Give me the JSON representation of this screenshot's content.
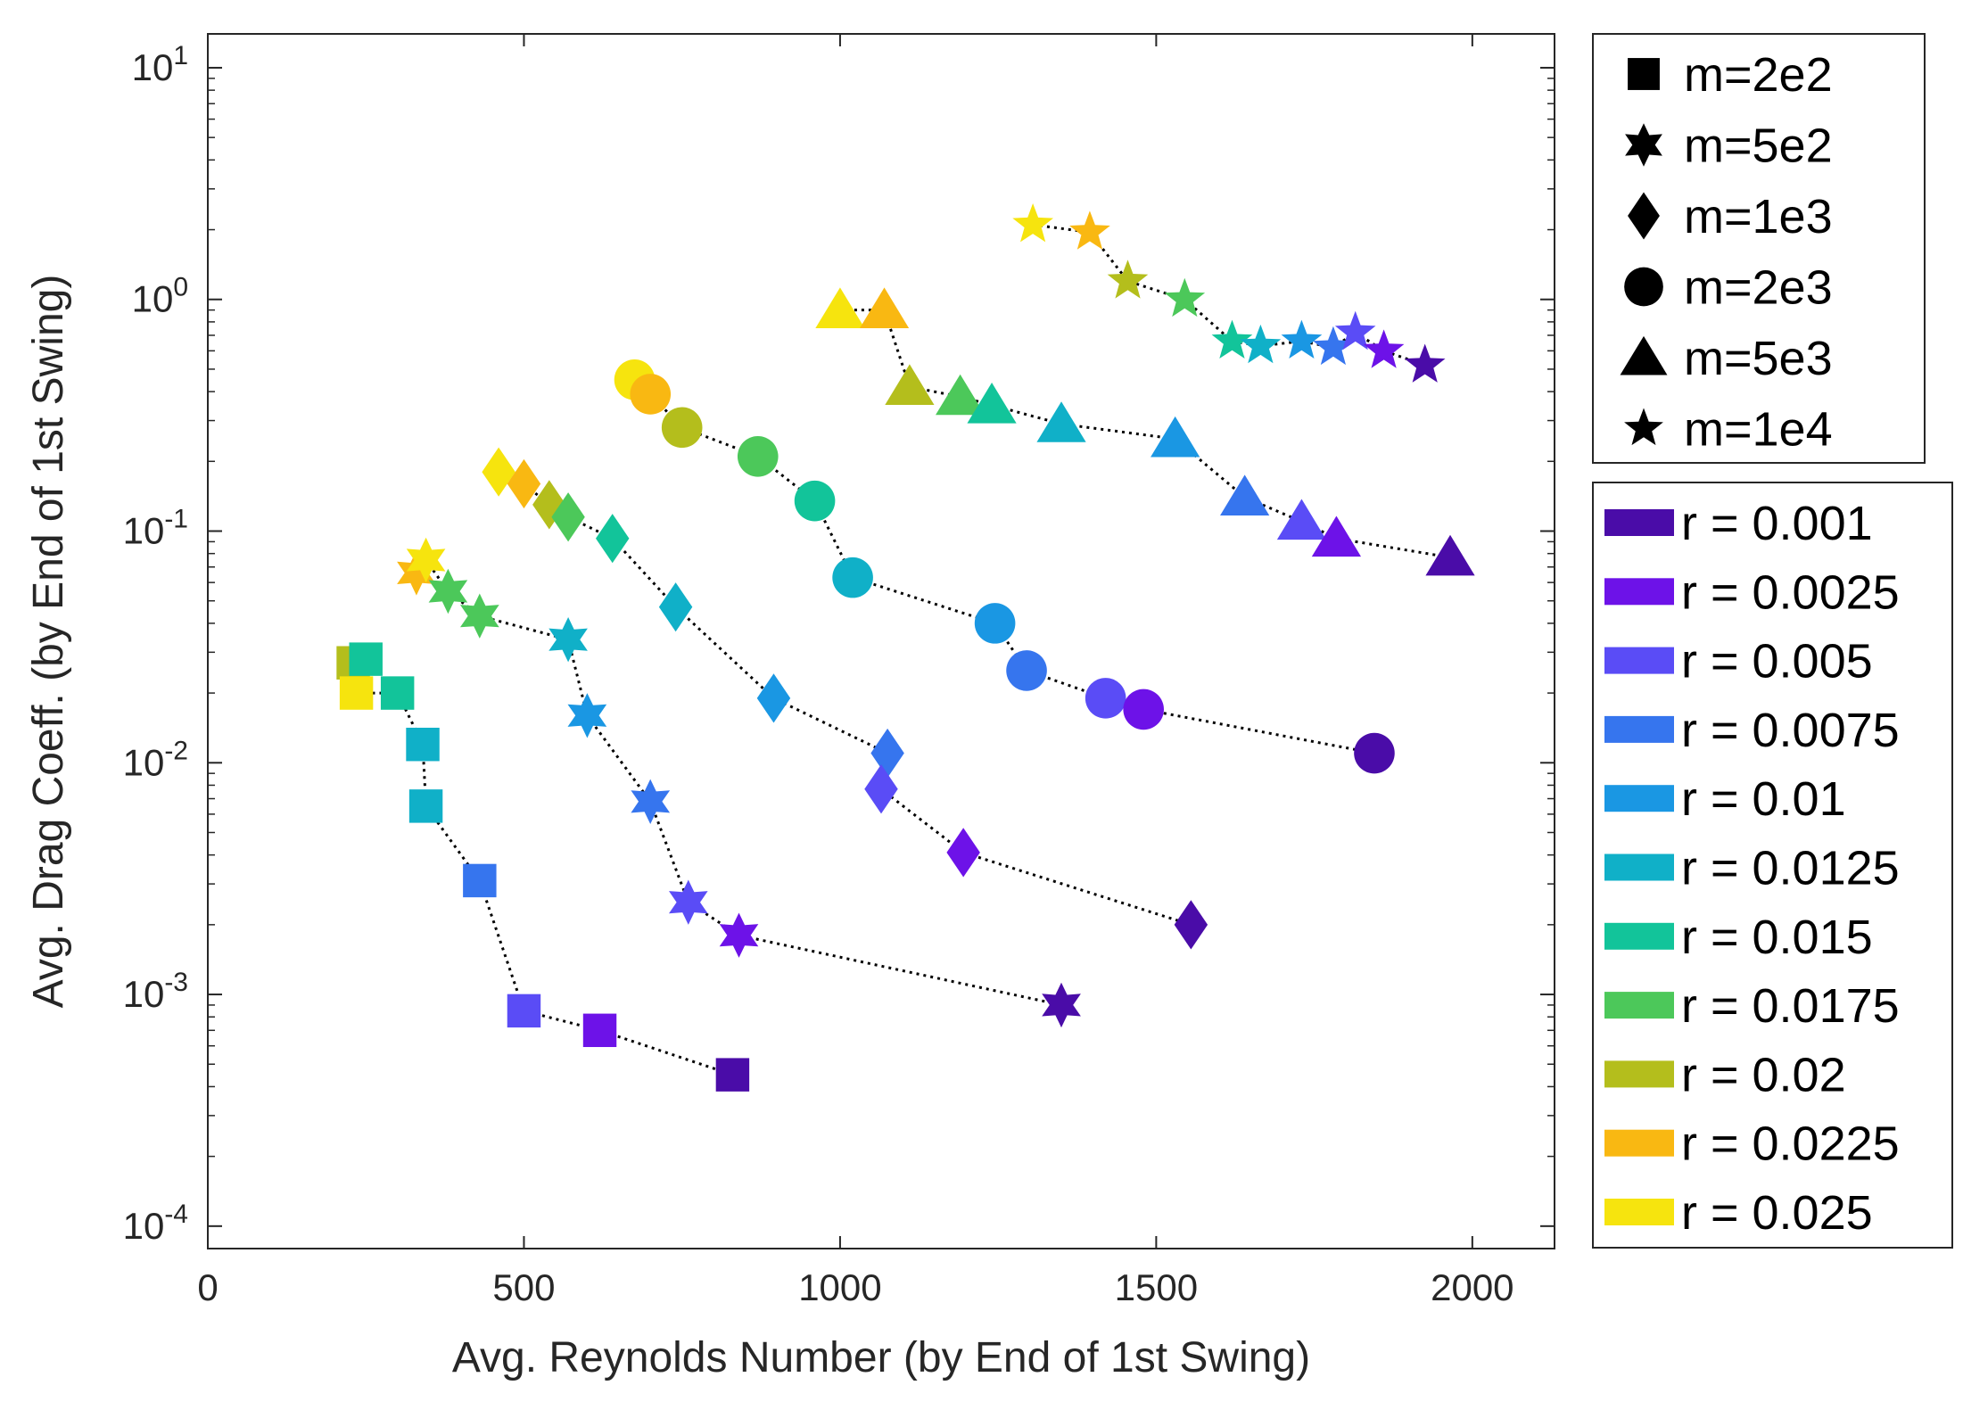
{
  "chart_data": {
    "type": "scatter",
    "xlabel": "Avg. Reynolds Number (by End of 1st Swing)",
    "ylabel": "Avg. Drag Coeff. (by End of 1st Swing)",
    "xlim": [
      0,
      2130
    ],
    "ylim": [
      8e-05,
      14
    ],
    "yscale": "log",
    "grid": false,
    "legend_placement": "outside-right",
    "x_ticks": [
      {
        "value": 0,
        "label": "0"
      },
      {
        "value": 500,
        "label": "500"
      },
      {
        "value": 1000,
        "label": "1000"
      },
      {
        "value": 1500,
        "label": "1500"
      },
      {
        "value": 2000,
        "label": "2000"
      }
    ],
    "y_ticks": [
      {
        "value": 0.0001,
        "base": "10",
        "exp": "-4"
      },
      {
        "value": 0.001,
        "base": "10",
        "exp": "-3"
      },
      {
        "value": 0.01,
        "base": "10",
        "exp": "-2"
      },
      {
        "value": 0.1,
        "base": "10",
        "exp": "-1"
      },
      {
        "value": 1,
        "base": "10",
        "exp": "0"
      },
      {
        "value": 10,
        "base": "10",
        "exp": "1"
      }
    ],
    "marker_legend": [
      {
        "marker": "square",
        "label": "m=2e2"
      },
      {
        "marker": "star6",
        "label": "m=5e2"
      },
      {
        "marker": "diamond",
        "label": "m=1e3"
      },
      {
        "marker": "circle",
        "label": "m=2e3"
      },
      {
        "marker": "triangle",
        "label": "m=5e3"
      },
      {
        "marker": "star5",
        "label": "m=1e4"
      }
    ],
    "r_legend": [
      {
        "label": "r = 0.001",
        "color": "#4a0ca8"
      },
      {
        "label": "r = 0.0025",
        "color": "#6d12e8"
      },
      {
        "label": "r = 0.005",
        "color": "#5a4cf6"
      },
      {
        "label": "r = 0.0075",
        "color": "#3675ee"
      },
      {
        "label": "r = 0.01",
        "color": "#1a97e3"
      },
      {
        "label": "r = 0.0125",
        "color": "#10b0c8"
      },
      {
        "label": "r = 0.015",
        "color": "#12c49a"
      },
      {
        "label": "r = 0.0175",
        "color": "#4cc85a"
      },
      {
        "label": "r = 0.02",
        "color": "#b4be1c"
      },
      {
        "label": "r = 0.0225",
        "color": "#f9b812"
      },
      {
        "label": "r = 0.025",
        "color": "#f6e40e"
      }
    ],
    "series": [
      {
        "marker": "square",
        "points": [
          {
            "x": 230,
            "y": 0.027,
            "r": "0.02"
          },
          {
            "x": 250,
            "y": 0.028,
            "r": "0.015"
          },
          {
            "x": 235,
            "y": 0.02,
            "r": "0.025"
          },
          {
            "x": 300,
            "y": 0.02,
            "r": "0.015"
          },
          {
            "x": 340,
            "y": 0.012,
            "r": "0.0125"
          },
          {
            "x": 345,
            "y": 0.0065,
            "r": "0.0125"
          },
          {
            "x": 430,
            "y": 0.0031,
            "r": "0.0075"
          },
          {
            "x": 500,
            "y": 0.00085,
            "r": "0.005"
          },
          {
            "x": 620,
            "y": 0.0007,
            "r": "0.0025"
          },
          {
            "x": 830,
            "y": 0.00045,
            "r": "0.001"
          }
        ]
      },
      {
        "marker": "star6",
        "points": [
          {
            "x": 330,
            "y": 0.066,
            "r": "0.0225"
          },
          {
            "x": 345,
            "y": 0.075,
            "r": "0.025"
          },
          {
            "x": 380,
            "y": 0.055,
            "r": "0.0175"
          },
          {
            "x": 430,
            "y": 0.043,
            "r": "0.0175"
          },
          {
            "x": 570,
            "y": 0.034,
            "r": "0.0125"
          },
          {
            "x": 600,
            "y": 0.016,
            "r": "0.01"
          },
          {
            "x": 700,
            "y": 0.0068,
            "r": "0.0075"
          },
          {
            "x": 760,
            "y": 0.0025,
            "r": "0.005"
          },
          {
            "x": 840,
            "y": 0.0018,
            "r": "0.0025"
          },
          {
            "x": 1350,
            "y": 0.0009,
            "r": "0.001"
          }
        ]
      },
      {
        "marker": "diamond",
        "points": [
          {
            "x": 460,
            "y": 0.18,
            "r": "0.025"
          },
          {
            "x": 500,
            "y": 0.16,
            "r": "0.0225"
          },
          {
            "x": 540,
            "y": 0.13,
            "r": "0.02"
          },
          {
            "x": 570,
            "y": 0.115,
            "r": "0.0175"
          },
          {
            "x": 640,
            "y": 0.093,
            "r": "0.015"
          },
          {
            "x": 740,
            "y": 0.047,
            "r": "0.0125"
          },
          {
            "x": 895,
            "y": 0.019,
            "r": "0.01"
          },
          {
            "x": 1075,
            "y": 0.011,
            "r": "0.0075"
          },
          {
            "x": 1065,
            "y": 0.0077,
            "r": "0.005"
          },
          {
            "x": 1195,
            "y": 0.0041,
            "r": "0.0025"
          },
          {
            "x": 1555,
            "y": 0.002,
            "r": "0.001"
          }
        ]
      },
      {
        "marker": "circle",
        "points": [
          {
            "x": 675,
            "y": 0.45,
            "r": "0.025"
          },
          {
            "x": 700,
            "y": 0.39,
            "r": "0.0225"
          },
          {
            "x": 750,
            "y": 0.28,
            "r": "0.02"
          },
          {
            "x": 870,
            "y": 0.21,
            "r": "0.0175"
          },
          {
            "x": 960,
            "y": 0.135,
            "r": "0.015"
          },
          {
            "x": 1020,
            "y": 0.063,
            "r": "0.0125"
          },
          {
            "x": 1245,
            "y": 0.04,
            "r": "0.01"
          },
          {
            "x": 1295,
            "y": 0.025,
            "r": "0.0075"
          },
          {
            "x": 1420,
            "y": 0.019,
            "r": "0.005"
          },
          {
            "x": 1480,
            "y": 0.017,
            "r": "0.0025"
          },
          {
            "x": 1845,
            "y": 0.011,
            "r": "0.001"
          }
        ]
      },
      {
        "marker": "triangle",
        "points": [
          {
            "x": 1000,
            "y": 0.9,
            "r": "0.025"
          },
          {
            "x": 1070,
            "y": 0.9,
            "r": "0.0225"
          },
          {
            "x": 1110,
            "y": 0.42,
            "r": "0.02"
          },
          {
            "x": 1190,
            "y": 0.38,
            "r": "0.0175"
          },
          {
            "x": 1240,
            "y": 0.35,
            "r": "0.015"
          },
          {
            "x": 1350,
            "y": 0.29,
            "r": "0.0125"
          },
          {
            "x": 1530,
            "y": 0.25,
            "r": "0.01"
          },
          {
            "x": 1640,
            "y": 0.14,
            "r": "0.0075"
          },
          {
            "x": 1730,
            "y": 0.11,
            "r": "0.005"
          },
          {
            "x": 1785,
            "y": 0.093,
            "r": "0.0025"
          },
          {
            "x": 1965,
            "y": 0.077,
            "r": "0.001"
          }
        ]
      },
      {
        "marker": "star5",
        "points": [
          {
            "x": 1305,
            "y": 2.1,
            "r": "0.025"
          },
          {
            "x": 1395,
            "y": 1.95,
            "r": "0.0225"
          },
          {
            "x": 1455,
            "y": 1.2,
            "r": "0.02"
          },
          {
            "x": 1545,
            "y": 1.0,
            "r": "0.0175"
          },
          {
            "x": 1620,
            "y": 0.66,
            "r": "0.015"
          },
          {
            "x": 1665,
            "y": 0.63,
            "r": "0.0125"
          },
          {
            "x": 1730,
            "y": 0.66,
            "r": "0.01"
          },
          {
            "x": 1780,
            "y": 0.62,
            "r": "0.0075"
          },
          {
            "x": 1815,
            "y": 0.72,
            "r": "0.005"
          },
          {
            "x": 1860,
            "y": 0.6,
            "r": "0.0025"
          },
          {
            "x": 1925,
            "y": 0.52,
            "r": "0.001"
          }
        ]
      }
    ]
  }
}
